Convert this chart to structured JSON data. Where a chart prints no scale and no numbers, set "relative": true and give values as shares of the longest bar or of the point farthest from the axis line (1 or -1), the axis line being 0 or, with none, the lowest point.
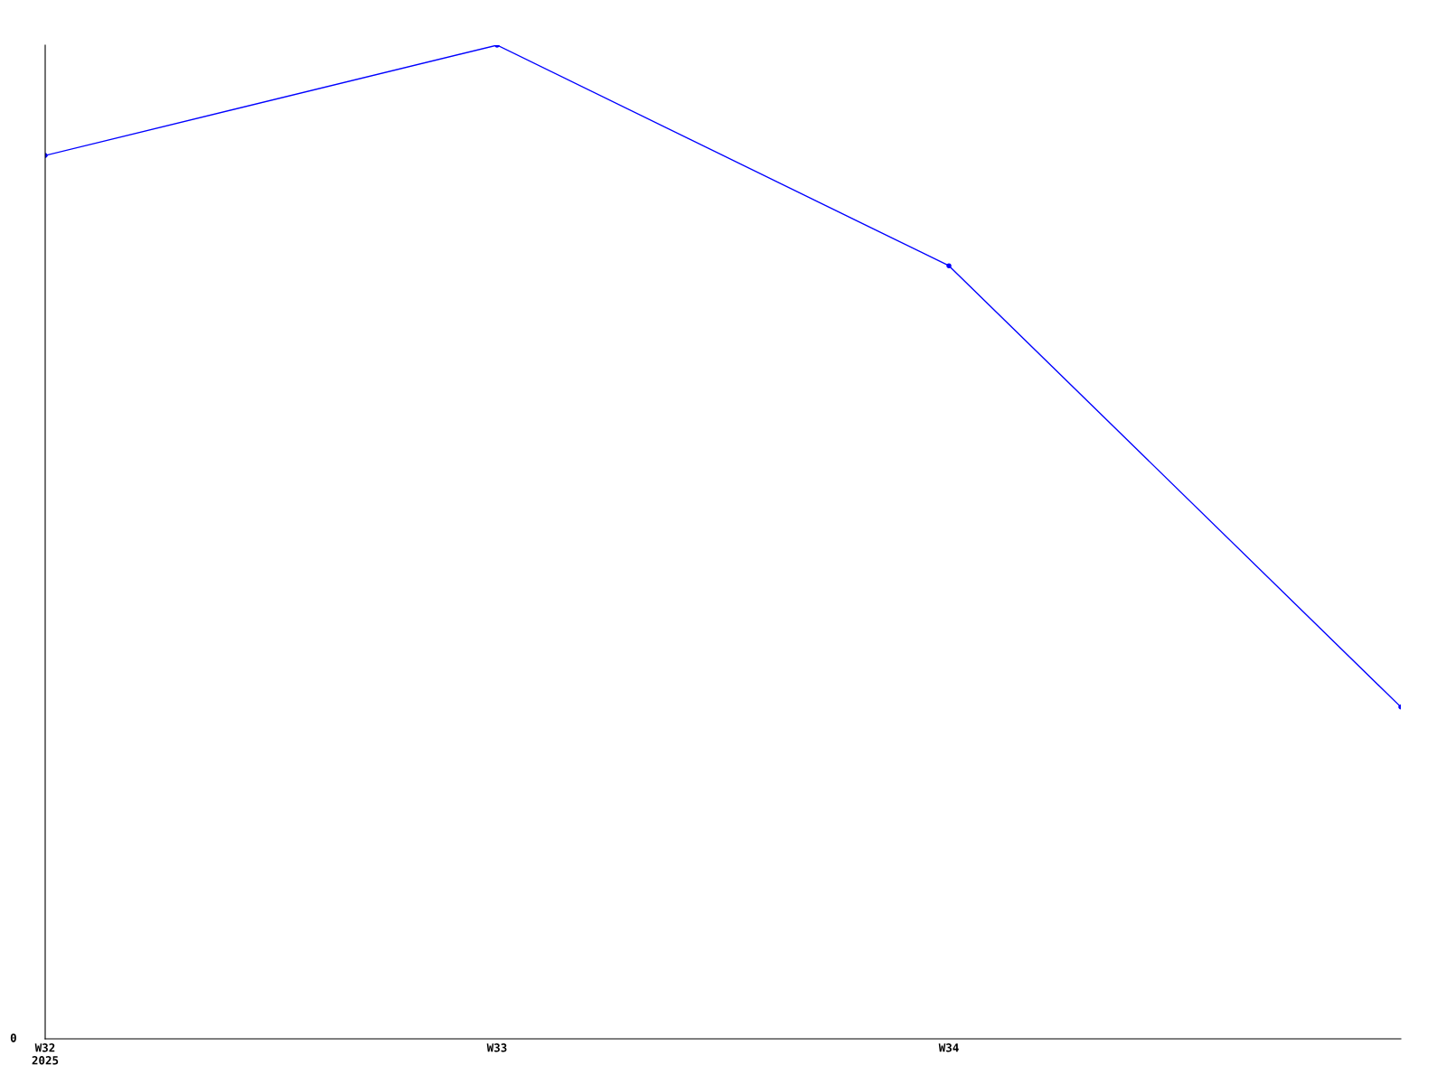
{
  "chart_data": {
    "type": "line",
    "relative": true,
    "categories": [
      "W32\n2025",
      "W33",
      "W34",
      null
    ],
    "series": [
      {
        "color": "#0000ff",
        "values": [
          0.889,
          1,
          0.778,
          0.334
        ]
      }
    ],
    "marker": "circle",
    "line_style": "solid",
    "grid": false,
    "legend": false,
    "annotations": [
      "0"
    ]
  }
}
